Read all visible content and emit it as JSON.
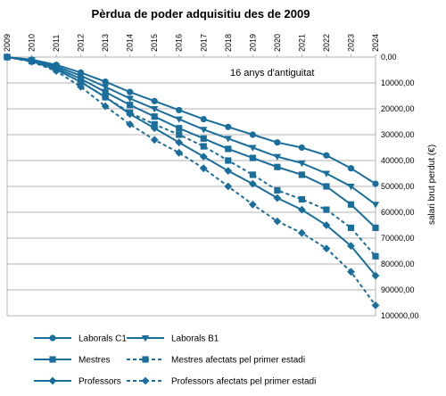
{
  "chart_data": {
    "type": "line",
    "title": "Pèrdua de poder adquisitiu des de 2009",
    "x": [
      2009,
      2010,
      2011,
      2012,
      2013,
      2014,
      2015,
      2016,
      2017,
      2018,
      2019,
      2020,
      2021,
      2022,
      2023,
      2024
    ],
    "x_tick_labels": [
      "2009",
      "2010",
      "2011",
      "2012",
      "2013",
      "2014",
      "2015",
      "2016",
      "2017",
      "2018",
      "2019",
      "2020",
      "2021",
      "2022",
      "2023",
      "2024"
    ],
    "y_tick_labels": [
      "0,00",
      "10000,00",
      "20000,00",
      "30000,00",
      "40000,00",
      "50000,00",
      "60000,00",
      "70000,00",
      "80000,00",
      "90000,00",
      "100000,00"
    ],
    "ylabel": "salari brut perdut (€)",
    "ylim": [
      0,
      100000
    ],
    "y_inverted": true,
    "x_axis_position": "top",
    "y_axis_position": "right",
    "grid": "horizontal",
    "annotation": "16 anys d'antiguitat",
    "series": [
      {
        "name": "Laborals C1",
        "marker": "circle",
        "dash": "solid",
        "color": "#1a6e9c",
        "values": [
          0,
          1000,
          3000,
          6000,
          9500,
          13500,
          17000,
          20500,
          24000,
          27000,
          30000,
          33000,
          35000,
          38000,
          43000,
          49000
        ]
      },
      {
        "name": "Laborals B1",
        "marker": "triangle-down",
        "dash": "solid",
        "color": "#1a6e9c",
        "values": [
          0,
          1200,
          3600,
          7200,
          11500,
          16000,
          20000,
          24000,
          28000,
          31500,
          35000,
          38500,
          41000,
          45000,
          50000,
          57000
        ]
      },
      {
        "name": "Mestres",
        "marker": "square",
        "dash": "solid",
        "color": "#1a6e9c",
        "values": [
          0,
          1400,
          4200,
          8400,
          13500,
          18500,
          23000,
          27500,
          31500,
          35500,
          39000,
          42500,
          45500,
          50000,
          57000,
          66000
        ]
      },
      {
        "name": "Mestres afectats pel primer estadi",
        "marker": "square",
        "dash": "dashed",
        "color": "#1a6e9c",
        "values": [
          0,
          1600,
          4800,
          9600,
          15500,
          21500,
          26000,
          30000,
          34500,
          40000,
          45500,
          51500,
          55000,
          59000,
          66000,
          77000
        ]
      },
      {
        "name": "Professors",
        "marker": "diamond",
        "dash": "solid",
        "color": "#1a6e9c",
        "values": [
          0,
          1600,
          4800,
          9600,
          15500,
          22000,
          27500,
          33000,
          38500,
          44000,
          49000,
          54500,
          59000,
          65000,
          73000,
          84500
        ]
      },
      {
        "name": "Professors afectats pel primer estadi",
        "marker": "diamond",
        "dash": "dashed",
        "color": "#1a6e9c",
        "values": [
          0,
          1800,
          5400,
          11500,
          19000,
          26000,
          32000,
          37000,
          43000,
          50000,
          57000,
          63500,
          68000,
          74000,
          83000,
          96000
        ]
      }
    ],
    "legend": {
      "placement": "bottom",
      "rows": [
        [
          "Laborals C1",
          "Laborals B1"
        ],
        [
          "Mestres",
          "Mestres afectats pel primer estadi"
        ],
        [
          "Professors",
          "Professors afectats pel primer estadi"
        ]
      ]
    }
  }
}
